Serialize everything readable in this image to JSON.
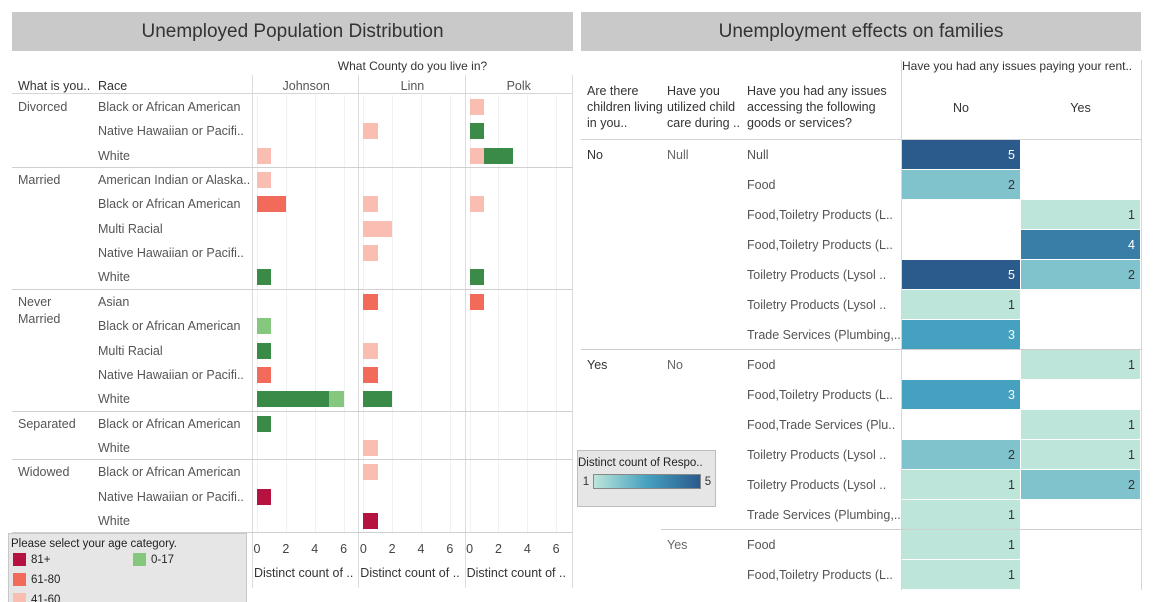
{
  "chart_data": [
    {
      "type": "bar",
      "title": "Unemployed Population Distribution",
      "column_title": "What County do you live in?",
      "row_headers": [
        "What is you..",
        "Race"
      ],
      "facets": [
        "Johnson",
        "Linn",
        "Polk"
      ],
      "groups": [
        {
          "label": "Divorced",
          "categories": [
            "Black or African American",
            "Native Hawaiian or Pacifi..",
            "White"
          ]
        },
        {
          "label": "Married",
          "categories": [
            "American Indian or Alaska..",
            "Black or African American",
            "Multi Racial",
            "Native Hawaiian or Pacifi..",
            "White"
          ]
        },
        {
          "label": "Never Married",
          "categories": [
            "Asian",
            "Black or African American",
            "Multi Racial",
            "Native Hawaiian or Pacifi..",
            "White"
          ]
        },
        {
          "label": "Separated",
          "categories": [
            "Black or African American",
            "White"
          ]
        },
        {
          "label": "Widowed",
          "categories": [
            "Black or African American",
            "Native Hawaiian or Pacifi..",
            "White"
          ]
        }
      ],
      "x_label": "Distinct count of ..",
      "xlim": [
        0,
        7
      ],
      "xticks": [
        0,
        2,
        4,
        6
      ],
      "grid": true,
      "legend_title": "Please select your age category.",
      "series": [
        {
          "name": "81+",
          "color": "#b5123f",
          "values": [
            [
              null,
              null,
              null,
              null,
              null,
              null,
              null,
              null,
              null,
              null,
              null,
              null,
              null,
              null,
              null,
              null,
              1,
              null
            ],
            [
              null,
              null,
              null,
              null,
              null,
              null,
              null,
              null,
              null,
              null,
              null,
              null,
              null,
              null,
              null,
              null,
              null,
              1
            ],
            [
              null,
              null,
              null,
              null,
              null,
              null,
              null,
              null,
              null,
              null,
              null,
              null,
              null,
              null,
              null,
              null,
              null,
              null
            ]
          ]
        },
        {
          "name": "61-80",
          "color": "#f26a5a",
          "values": [
            [
              null,
              null,
              null,
              null,
              2,
              null,
              null,
              null,
              null,
              null,
              null,
              1,
              null,
              null,
              null,
              null,
              null,
              null
            ],
            [
              null,
              null,
              null,
              null,
              null,
              null,
              null,
              null,
              1,
              null,
              null,
              1,
              null,
              null,
              null,
              null,
              null,
              null
            ],
            [
              null,
              null,
              null,
              null,
              null,
              null,
              null,
              null,
              1,
              null,
              null,
              null,
              null,
              null,
              null,
              null,
              null,
              null
            ]
          ]
        },
        {
          "name": "41-60",
          "color": "#f9bdb1",
          "values": [
            [
              null,
              null,
              1,
              1,
              null,
              null,
              null,
              null,
              null,
              null,
              null,
              null,
              null,
              null,
              null,
              null,
              null,
              null
            ],
            [
              null,
              1,
              null,
              null,
              1,
              2,
              1,
              null,
              null,
              null,
              1,
              null,
              null,
              null,
              1,
              1,
              null,
              null
            ],
            [
              1,
              null,
              1,
              null,
              1,
              null,
              null,
              null,
              null,
              null,
              null,
              null,
              null,
              null,
              null,
              null,
              null,
              null
            ]
          ]
        },
        {
          "color": "#3a8a48",
          "values": [
            [
              null,
              null,
              null,
              null,
              null,
              null,
              null,
              1,
              null,
              null,
              1,
              null,
              5,
              1,
              null,
              null,
              null,
              null
            ],
            [
              null,
              null,
              null,
              null,
              null,
              null,
              null,
              null,
              null,
              null,
              null,
              null,
              2,
              null,
              null,
              null,
              null,
              null
            ],
            [
              null,
              1,
              2,
              null,
              null,
              null,
              null,
              1,
              null,
              null,
              null,
              null,
              null,
              null,
              null,
              null,
              null,
              null
            ]
          ]
        },
        {
          "name": "0-17",
          "color": "#85c77d",
          "values": [
            [
              null,
              null,
              null,
              null,
              null,
              null,
              null,
              null,
              null,
              1,
              null,
              null,
              1,
              null,
              null,
              null,
              null,
              null
            ],
            [
              null,
              null,
              null,
              null,
              null,
              null,
              null,
              null,
              null,
              null,
              null,
              null,
              null,
              null,
              null,
              null,
              null,
              null
            ],
            [
              null,
              null,
              null,
              null,
              null,
              null,
              null,
              null,
              null,
              null,
              null,
              null,
              null,
              null,
              null,
              null,
              null,
              null
            ]
          ]
        }
      ]
    },
    {
      "type": "heatmap",
      "title": "Unemployment effects on families",
      "column_title": "Have you had any issues paying your rent..",
      "columns": [
        "No",
        "Yes"
      ],
      "row_headers": [
        "Are there children living in you..",
        "Have you utilized child care during ..",
        "Have you had any issues accessing the following goods or services?"
      ],
      "groups": [
        {
          "label": "No",
          "subgroups": [
            {
              "label": "Null",
              "rows": [
                {
                  "label": "Null",
                  "values": [
                    5,
                    null
                  ]
                },
                {
                  "label": "Food",
                  "values": [
                    2,
                    null
                  ]
                },
                {
                  "label": "Food,Toiletry Products (L..",
                  "values": [
                    null,
                    1
                  ]
                },
                {
                  "label": "Food,Toiletry Products (L..",
                  "values": [
                    null,
                    4
                  ]
                },
                {
                  "label": "Toiletry Products (Lysol ..",
                  "values": [
                    5,
                    2
                  ]
                },
                {
                  "label": "Toiletry Products (Lysol ..",
                  "values": [
                    1,
                    null
                  ]
                },
                {
                  "label": "Trade Services (Plumbing,..",
                  "values": [
                    3,
                    null
                  ]
                }
              ]
            }
          ]
        },
        {
          "label": "Yes",
          "subgroups": [
            {
              "label": "No",
              "rows": [
                {
                  "label": "Food",
                  "values": [
                    null,
                    1
                  ]
                },
                {
                  "label": "Food,Toiletry Products (L..",
                  "values": [
                    3,
                    null
                  ]
                },
                {
                  "label": "Food,Trade Services (Plu..",
                  "values": [
                    null,
                    1
                  ]
                },
                {
                  "label": "Toiletry Products (Lysol ..",
                  "values": [
                    2,
                    1
                  ]
                },
                {
                  "label": "Toiletry Products (Lysol ..",
                  "values": [
                    1,
                    2
                  ]
                },
                {
                  "label": "Trade Services (Plumbing,..",
                  "values": [
                    1,
                    null
                  ]
                }
              ]
            },
            {
              "label": "Yes",
              "rows": [
                {
                  "label": "Food",
                  "values": [
                    1,
                    null
                  ]
                },
                {
                  "label": "Food,Toiletry Products (L..",
                  "values": [
                    1,
                    null
                  ]
                }
              ]
            }
          ]
        }
      ],
      "legend_title": "Distinct count of Respo..",
      "clim": [
        1,
        5
      ],
      "colors": [
        "#bde5da",
        "#45a1bf",
        "#2b5a8c"
      ]
    }
  ]
}
